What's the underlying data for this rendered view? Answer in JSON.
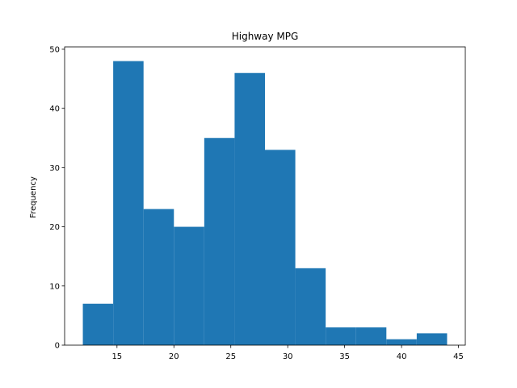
{
  "chart_data": {
    "type": "histogram",
    "title": "Highway MPG",
    "y_label": "Frequency",
    "bins": [
      12,
      14.6667,
      17.3333,
      20,
      22.6667,
      25.3333,
      28,
      30.6667,
      33.3333,
      36,
      38.6667,
      41.3333,
      44
    ],
    "values": [
      7,
      48,
      23,
      20,
      35,
      46,
      33,
      13,
      3,
      3,
      1,
      2
    ],
    "color": "#1f77b4",
    "xlim": [
      10.4,
      45.6
    ],
    "xticks": [
      15,
      20,
      25,
      30,
      35,
      40,
      45
    ],
    "ylim": [
      0,
      50.4
    ],
    "yticks": [
      0,
      10,
      20,
      30,
      40,
      50
    ]
  }
}
